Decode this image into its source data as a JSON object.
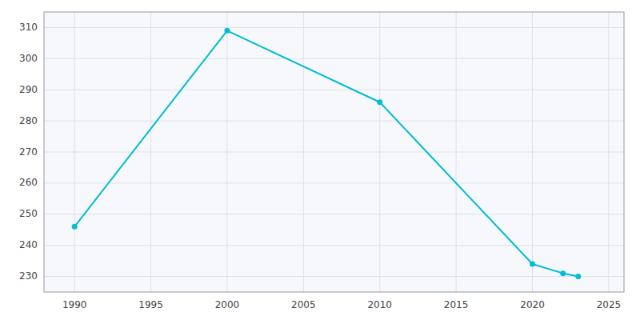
{
  "chart_data": {
    "type": "line",
    "x": [
      1990,
      2000,
      2010,
      2020,
      2022,
      2023
    ],
    "values": [
      246,
      309,
      286,
      234,
      231,
      230
    ],
    "color": "#00bcd4",
    "marker": "circle",
    "xlim": [
      1988,
      2026
    ],
    "ylim": [
      225,
      315
    ],
    "xticks": [
      1990,
      1995,
      2000,
      2005,
      2010,
      2015,
      2020,
      2025
    ],
    "yticks": [
      230,
      240,
      250,
      260,
      270,
      280,
      290,
      300,
      310
    ],
    "grid": true
  }
}
